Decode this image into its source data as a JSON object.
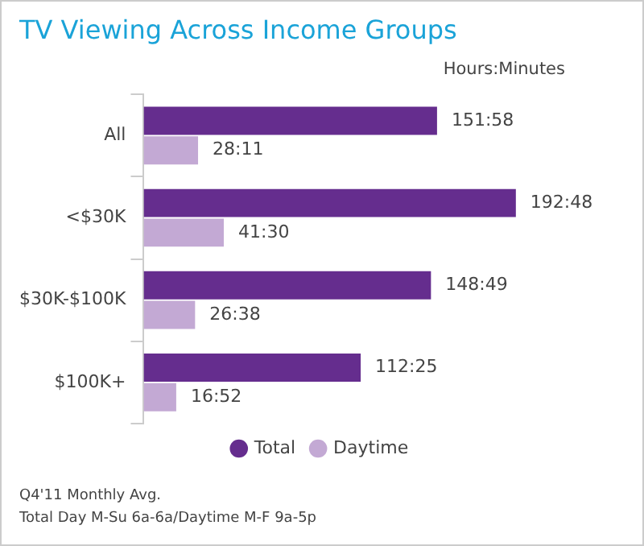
{
  "chart_data": {
    "type": "bar",
    "orientation": "horizontal",
    "title": "TV Viewing Across Income Groups",
    "subtitle": "Hours:Minutes",
    "categories": [
      "All",
      "<$30K",
      "$30K-$100K",
      "$100K+"
    ],
    "series": [
      {
        "name": "Total",
        "color": "#652d8e",
        "values": [
          151.97,
          192.8,
          148.82,
          112.42
        ],
        "value_labels": [
          "151:58",
          "192:48",
          "148:49",
          "112:25"
        ]
      },
      {
        "name": "Daytime",
        "color": "#c3a9d4",
        "values": [
          28.18,
          41.5,
          26.63,
          16.87
        ],
        "value_labels": [
          "28:11",
          "41:30",
          "26:38",
          "16:52"
        ]
      }
    ],
    "legend": "bottom",
    "annotations": [
      "Q4'11 Monthly Avg.",
      "Total Day M-Su 6a-6a/Daytime M-F 9a-5p"
    ]
  }
}
